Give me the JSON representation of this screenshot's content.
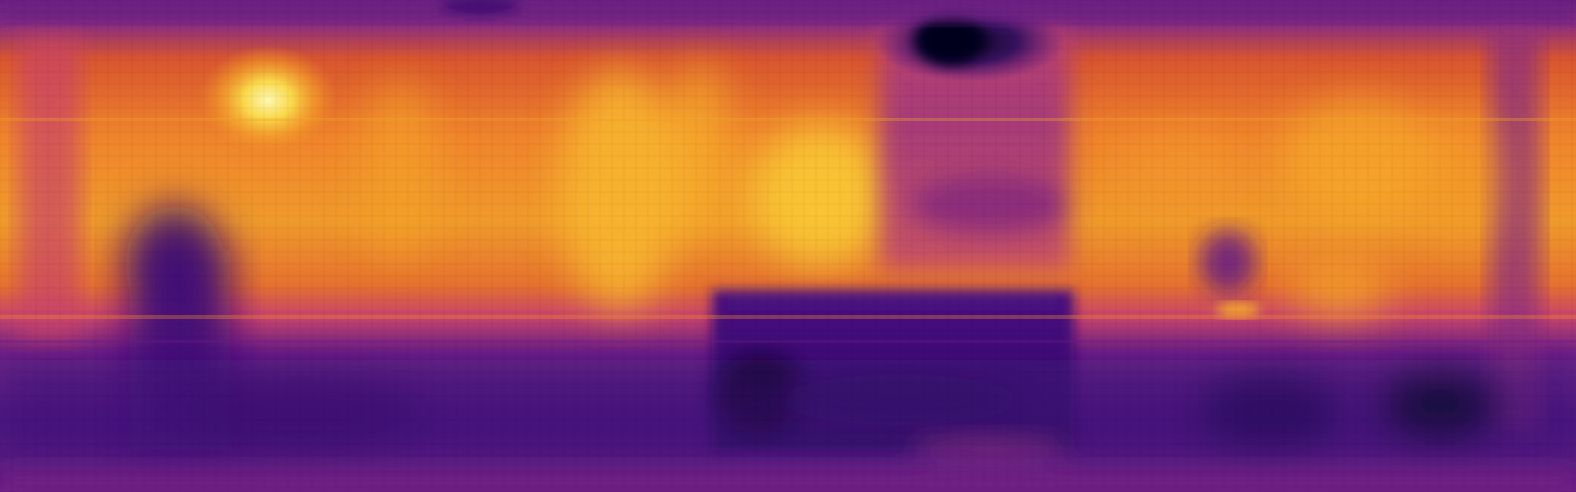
{
  "image": {
    "kind": "depth-map",
    "colormap": "inferno",
    "palette": {
      "near_dark": "#0d0829",
      "deep_purple": "#3b0f70",
      "purple": "#5c1a7a",
      "magenta": "#9a2f7a",
      "rose": "#c43c6e",
      "orange": "#e8632f",
      "amber": "#f5922a",
      "yellow": "#f9c22e",
      "pale_yellow": "#fcf3a8"
    }
  }
}
